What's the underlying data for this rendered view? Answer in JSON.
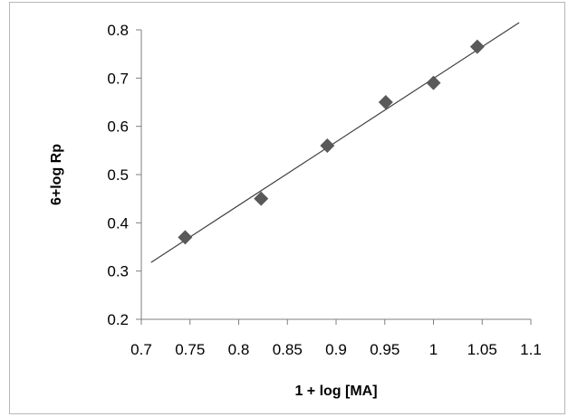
{
  "chart_data": {
    "type": "scatter",
    "title": "",
    "xlabel": "1 + log [MA]",
    "ylabel": "6+log Rp",
    "xlim": [
      0.7,
      1.1
    ],
    "ylim": [
      0.2,
      0.8
    ],
    "x_ticks": [
      "0.7",
      "0.75",
      "0.8",
      "0.85",
      "0.9",
      "0.95",
      "1",
      "1.05",
      "1.1"
    ],
    "y_ticks": [
      "0.2",
      "0.3",
      "0.4",
      "0.5",
      "0.6",
      "0.7",
      "0.8"
    ],
    "grid": false,
    "legend": "none",
    "marker": "diamond",
    "marker_color": "#595959",
    "trendline_color": "#404040",
    "series": [
      {
        "points": [
          {
            "x": 0.745,
            "y": 0.37
          },
          {
            "x": 0.823,
            "y": 0.45
          },
          {
            "x": 0.891,
            "y": 0.56
          },
          {
            "x": 0.951,
            "y": 0.65
          },
          {
            "x": 1.0,
            "y": 0.69
          },
          {
            "x": 1.045,
            "y": 0.765
          }
        ],
        "trendline": {
          "x_start": 0.71,
          "y_start": 0.318,
          "x_end": 1.088,
          "y_end": 0.815
        }
      }
    ]
  }
}
